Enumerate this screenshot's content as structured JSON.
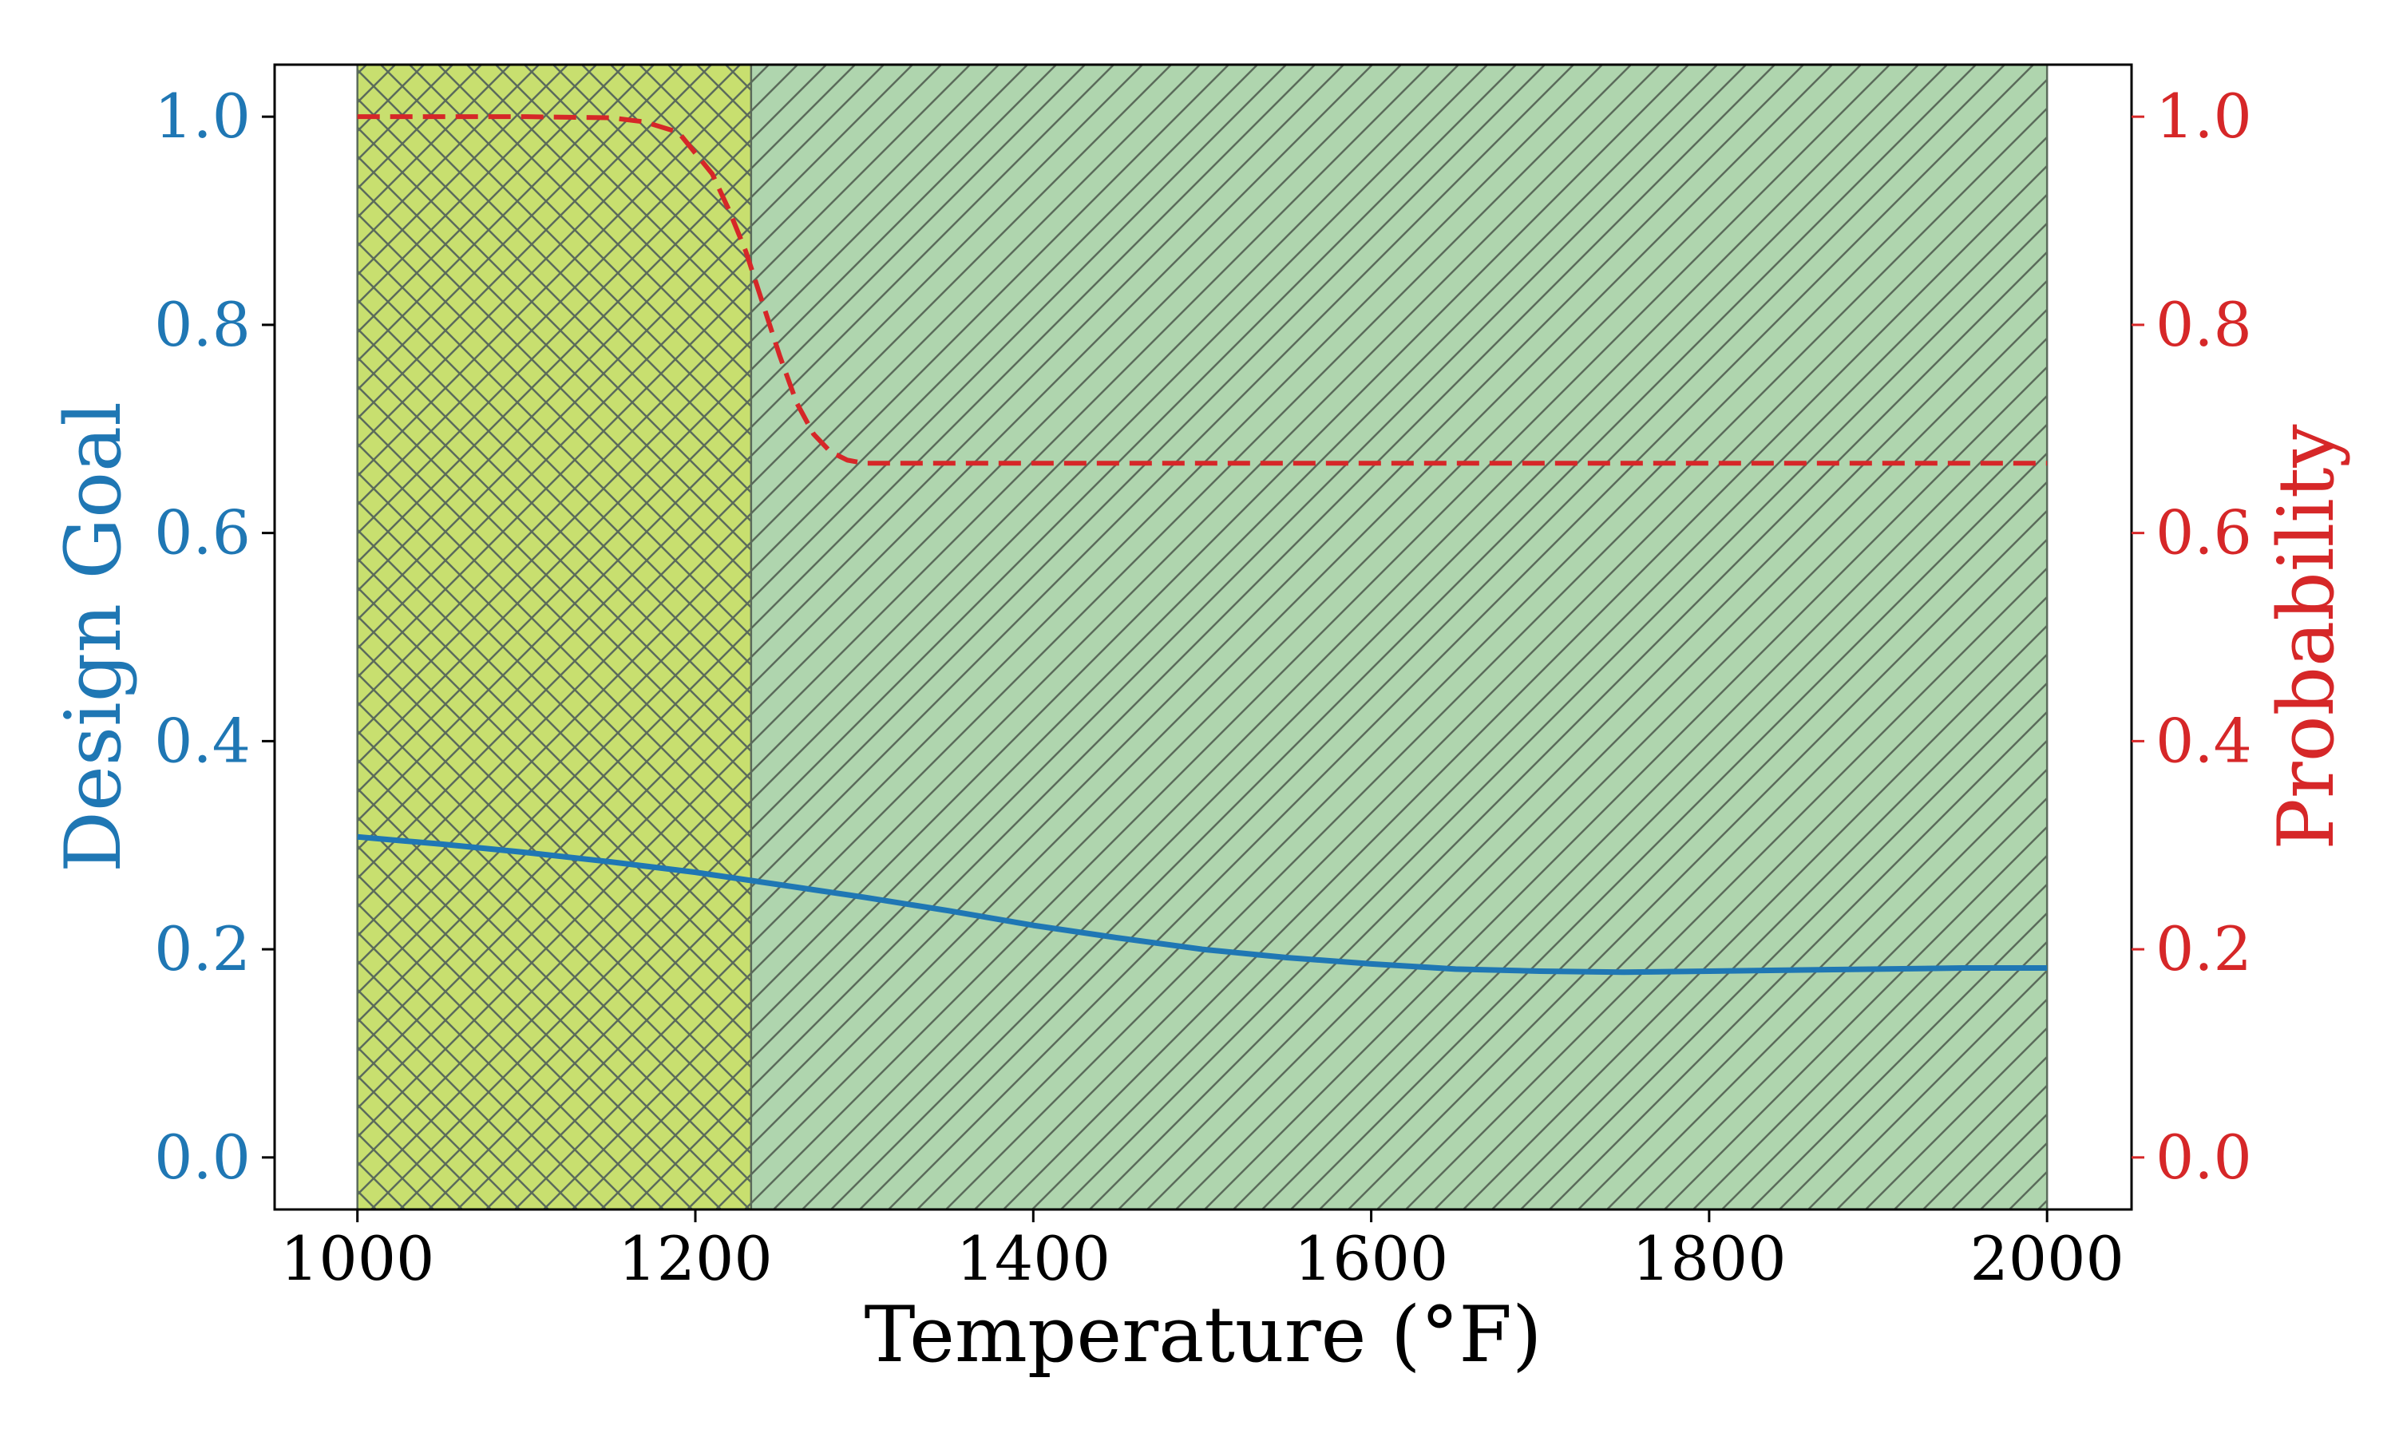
{
  "chart_data": {
    "type": "line",
    "xlabel": "Temperature (°F)",
    "ylabel_left": "Design Goal",
    "ylabel_right": "Probability",
    "xlim": [
      951,
      2050
    ],
    "ylim_left": [
      -0.05,
      1.05
    ],
    "ylim_right": [
      -0.05,
      1.05
    ],
    "x_ticks": [
      1000,
      1200,
      1400,
      1600,
      1800,
      2000
    ],
    "x_tick_labels": [
      "1000",
      "1200",
      "1400",
      "1600",
      "1800",
      "2000"
    ],
    "y_left_ticks": [
      0.0,
      0.2,
      0.4,
      0.6,
      0.8,
      1.0
    ],
    "y_left_tick_labels": [
      "0.0",
      "0.2",
      "0.4",
      "0.6",
      "0.8",
      "1.0"
    ],
    "y_right_ticks": [
      0.0,
      0.2,
      0.4,
      0.6,
      0.8,
      1.0
    ],
    "y_right_tick_labels": [
      "0.0",
      "0.2",
      "0.4",
      "0.6",
      "0.8",
      "1.0"
    ],
    "grid": false,
    "colors": {
      "left_axis": "#1f77b4",
      "right_axis": "#d62728",
      "region_1": "#c8df6f",
      "region_2": "#afd5ae",
      "hatch": "#5b6b5b"
    },
    "regions": [
      {
        "x_start": 1000,
        "x_end": 1233,
        "hatch": "cross"
      },
      {
        "x_start": 1233,
        "x_end": 2000,
        "hatch": "diagonal"
      }
    ],
    "series": [
      {
        "axis": "left",
        "style": "solid",
        "x": [
          1000,
          1050,
          1100,
          1150,
          1200,
          1250,
          1300,
          1350,
          1400,
          1450,
          1500,
          1550,
          1600,
          1650,
          1700,
          1750,
          1800,
          1850,
          1900,
          1950,
          2000
        ],
        "y": [
          0.308,
          0.301,
          0.293,
          0.284,
          0.274,
          0.262,
          0.25,
          0.237,
          0.223,
          0.211,
          0.2,
          0.192,
          0.186,
          0.181,
          0.179,
          0.178,
          0.179,
          0.18,
          0.181,
          0.182,
          0.182
        ]
      },
      {
        "axis": "right",
        "style": "dashed",
        "x": [
          1000,
          1050,
          1100,
          1150,
          1170,
          1190,
          1200,
          1210,
          1220,
          1230,
          1240,
          1250,
          1260,
          1270,
          1280,
          1290,
          1300,
          1350,
          1400,
          1500,
          1600,
          1700,
          1800,
          1900,
          2000
        ],
        "y": [
          1.0,
          1.0,
          1.0,
          0.999,
          0.995,
          0.985,
          0.965,
          0.945,
          0.91,
          0.87,
          0.82,
          0.77,
          0.725,
          0.695,
          0.678,
          0.67,
          0.667,
          0.667,
          0.667,
          0.667,
          0.667,
          0.667,
          0.667,
          0.667,
          0.667
        ]
      }
    ]
  }
}
